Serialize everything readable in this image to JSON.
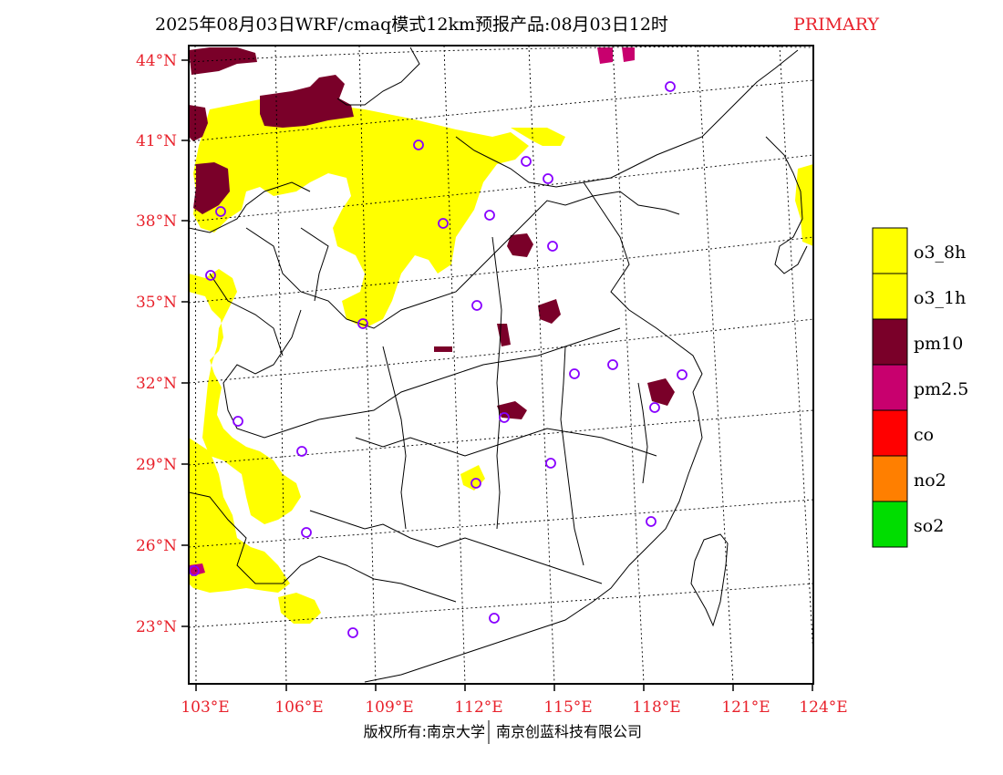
{
  "header": {
    "title": "2025年08月03日WRF/cmaq模式12km预报产品:08月03日12时",
    "tag": "PRIMARY"
  },
  "axes": {
    "lat_labels": [
      "44°N",
      "41°N",
      "38°N",
      "35°N",
      "32°N",
      "29°N",
      "26°N",
      "23°N"
    ],
    "lon_labels": [
      "103°E",
      "106°E",
      "109°E",
      "112°E",
      "115°E",
      "118°E",
      "121°E",
      "124°E"
    ]
  },
  "legend": {
    "items": [
      {
        "label": "o3_8h",
        "color": "#ffff00"
      },
      {
        "label": "o3_1h",
        "color": "#ffff00"
      },
      {
        "label": "pm10",
        "color": "#7a0029"
      },
      {
        "label": "pm2.5",
        "color": "#c8006e"
      },
      {
        "label": "co",
        "color": "#ff0000"
      },
      {
        "label": "no2",
        "color": "#ff7f00"
      },
      {
        "label": "so2",
        "color": "#00dd00"
      }
    ]
  },
  "footer": {
    "copyright": "版权所有:南京大学",
    "company": "南京创蓝科技有限公司"
  },
  "map": {
    "site_marker_color": "#8800ff"
  }
}
